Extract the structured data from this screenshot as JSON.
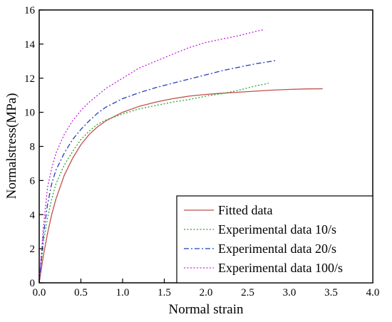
{
  "chart_data": {
    "type": "line",
    "title": "",
    "xlabel": "Normal strain",
    "ylabel": "Normalstress(MPa)",
    "xlim": [
      0,
      4.0
    ],
    "ylim": [
      0,
      16
    ],
    "xticks": [
      0.0,
      0.5,
      1.0,
      1.5,
      2.0,
      2.5,
      3.0,
      3.5,
      4.0
    ],
    "xtick_labels": [
      "0.0",
      "0.5",
      "1.0",
      "1.5",
      "2.0",
      "2.5",
      "3.0",
      "3.5",
      "4.0"
    ],
    "yticks": [
      0,
      2,
      4,
      6,
      8,
      10,
      12,
      14,
      16
    ],
    "ytick_labels": [
      "0",
      "2",
      "4",
      "6",
      "8",
      "10",
      "12",
      "14",
      "16"
    ],
    "grid": false,
    "legend_position": "bottom-right",
    "series": [
      {
        "name": "Fitted data",
        "color": "#c0504d",
        "style": "solid",
        "x": [
          0.0,
          0.05,
          0.1,
          0.15,
          0.2,
          0.3,
          0.4,
          0.5,
          0.6,
          0.7,
          0.8,
          1.0,
          1.2,
          1.4,
          1.6,
          1.8,
          2.0,
          2.2,
          2.4,
          2.6,
          2.8,
          3.0,
          3.2,
          3.4
        ],
        "y": [
          0.0,
          1.6,
          2.9,
          4.0,
          4.9,
          6.3,
          7.3,
          8.1,
          8.7,
          9.15,
          9.5,
          10.0,
          10.35,
          10.6,
          10.8,
          10.95,
          11.05,
          11.12,
          11.18,
          11.24,
          11.3,
          11.34,
          11.37,
          11.38
        ]
      },
      {
        "name": "Experimental data 10/s",
        "color": "#2ca02c",
        "style": "dotted",
        "x": [
          0.0,
          0.05,
          0.1,
          0.15,
          0.2,
          0.3,
          0.4,
          0.5,
          0.6,
          0.7,
          0.8,
          1.0,
          1.2,
          1.4,
          1.6,
          1.8,
          2.0,
          2.2,
          2.4,
          2.6,
          2.75
        ],
        "y": [
          0.0,
          2.4,
          3.8,
          4.9,
          5.8,
          6.9,
          7.7,
          8.4,
          8.9,
          9.3,
          9.55,
          9.9,
          10.2,
          10.4,
          10.6,
          10.75,
          10.95,
          11.1,
          11.3,
          11.55,
          11.7
        ]
      },
      {
        "name": "Experimental data 20/s",
        "color": "#1f3fbf",
        "style": "dashdot",
        "x": [
          0.0,
          0.05,
          0.1,
          0.15,
          0.2,
          0.3,
          0.4,
          0.5,
          0.6,
          0.7,
          0.8,
          1.0,
          1.2,
          1.4,
          1.6,
          1.8,
          2.0,
          2.2,
          2.4,
          2.6,
          2.8,
          2.85
        ],
        "y": [
          0.0,
          2.8,
          4.6,
          5.8,
          6.6,
          7.6,
          8.4,
          9.0,
          9.5,
          9.95,
          10.3,
          10.8,
          11.15,
          11.45,
          11.7,
          11.95,
          12.2,
          12.45,
          12.65,
          12.85,
          13.0,
          13.05
        ]
      },
      {
        "name": "Experimental data 100/s",
        "color": "#c020e0",
        "style": "dotted",
        "x": [
          0.0,
          0.05,
          0.1,
          0.15,
          0.2,
          0.3,
          0.4,
          0.5,
          0.6,
          0.7,
          0.8,
          1.0,
          1.2,
          1.4,
          1.6,
          1.8,
          2.0,
          2.2,
          2.4,
          2.6,
          2.7
        ],
        "y": [
          0.0,
          3.3,
          5.6,
          6.7,
          7.6,
          8.7,
          9.5,
          10.1,
          10.6,
          11.0,
          11.4,
          12.0,
          12.6,
          13.0,
          13.4,
          13.8,
          14.1,
          14.3,
          14.5,
          14.75,
          14.85
        ]
      }
    ]
  }
}
